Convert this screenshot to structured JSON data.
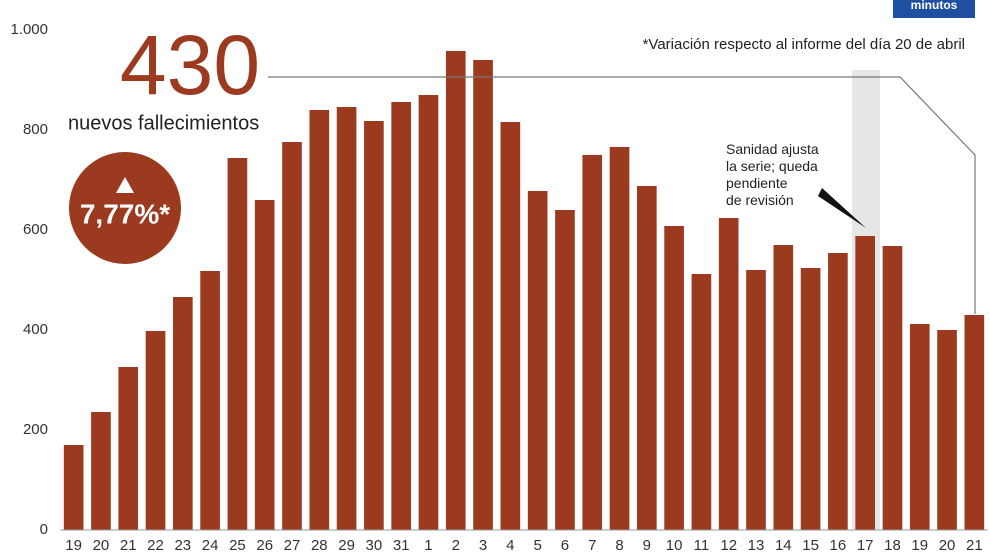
{
  "chart_data": {
    "type": "bar",
    "categories": [
      "19",
      "20",
      "21",
      "22",
      "23",
      "24",
      "25",
      "26",
      "27",
      "28",
      "29",
      "30",
      "31",
      "1",
      "2",
      "3",
      "4",
      "5",
      "6",
      "7",
      "8",
      "9",
      "10",
      "11",
      "12",
      "13",
      "14",
      "15",
      "16",
      "17",
      "18",
      "19",
      "20",
      "21"
    ],
    "values": [
      170,
      236,
      326,
      398,
      466,
      518,
      744,
      660,
      776,
      840,
      846,
      818,
      856,
      870,
      958,
      940,
      816,
      678,
      640,
      750,
      766,
      688,
      608,
      512,
      624,
      520,
      570,
      524,
      554,
      588,
      568,
      412,
      400,
      430
    ],
    "color": "#9b3a1e",
    "ylim": [
      0,
      1000
    ],
    "yticks": [
      0,
      200,
      400,
      600,
      800,
      {
        "value": 1000,
        "label": "1.000"
      }
    ],
    "callout_value": "430",
    "callout_label": "nuevos fallecimientos",
    "callout_change": "7,77%*",
    "note": "*Variación respecto al informe del día 20 de abril",
    "annotation": [
      "Sanidad ajusta",
      "la serie; queda",
      "pendiente",
      "de revisión"
    ],
    "logo": "minutos"
  }
}
